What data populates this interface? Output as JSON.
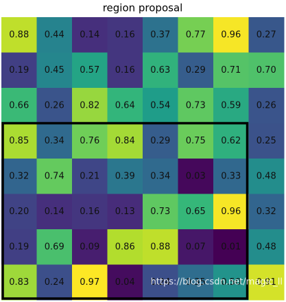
{
  "chart_data": {
    "type": "heatmap",
    "title": "region proposal",
    "colormap": "viridis",
    "values": [
      [
        0.88,
        0.44,
        0.14,
        0.16,
        0.37,
        0.77,
        0.96,
        0.27
      ],
      [
        0.19,
        0.45,
        0.57,
        0.16,
        0.63,
        0.29,
        0.71,
        0.7
      ],
      [
        0.66,
        0.26,
        0.82,
        0.64,
        0.54,
        0.73,
        0.59,
        0.26
      ],
      [
        0.85,
        0.34,
        0.76,
        0.84,
        0.29,
        0.75,
        0.62,
        0.25
      ],
      [
        0.32,
        0.74,
        0.21,
        0.39,
        0.34,
        0.03,
        0.33,
        0.48
      ],
      [
        0.2,
        0.14,
        0.16,
        0.13,
        0.73,
        0.65,
        0.96,
        0.32
      ],
      [
        0.19,
        0.69,
        0.09,
        0.86,
        0.88,
        0.07,
        0.01,
        0.48
      ],
      [
        0.83,
        0.24,
        0.97,
        0.04,
        0.24,
        0.35,
        0.5,
        0.91
      ]
    ],
    "value_labels": [
      [
        "0.88",
        "0.44",
        "0.14",
        "0.16",
        "0.37",
        "0.77",
        "0.96",
        "0.27"
      ],
      [
        "0.19",
        "0.45",
        "0.57",
        "0.16",
        "0.63",
        "0.29",
        "0.71",
        "0.70"
      ],
      [
        "0.66",
        "0.26",
        "0.82",
        "0.64",
        "0.54",
        "0.73",
        "0.59",
        "0.26"
      ],
      [
        "0.85",
        "0.34",
        "0.76",
        "0.84",
        "0.29",
        "0.75",
        "0.62",
        "0.25"
      ],
      [
        "0.32",
        "0.74",
        "0.21",
        "0.39",
        "0.34",
        "0.03",
        "0.33",
        "0.48"
      ],
      [
        "0.20",
        "0.14",
        "0.16",
        "0.13",
        "0.73",
        "0.65",
        "0.96",
        "0.32"
      ],
      [
        "0.19",
        "0.69",
        "0.09",
        "0.86",
        "0.88",
        "0.07",
        "0.01",
        "0.48"
      ],
      [
        "0.83",
        "0.24",
        "0.97",
        "0.04",
        "0.24",
        "0.35",
        "0.50",
        "0.91"
      ]
    ],
    "highlight": {
      "row_start": 3,
      "row_end": 7,
      "col_start": 0,
      "col_end": 6,
      "color": "#000000"
    },
    "watermark": "https://blog.csdn.net/magic_ll"
  }
}
